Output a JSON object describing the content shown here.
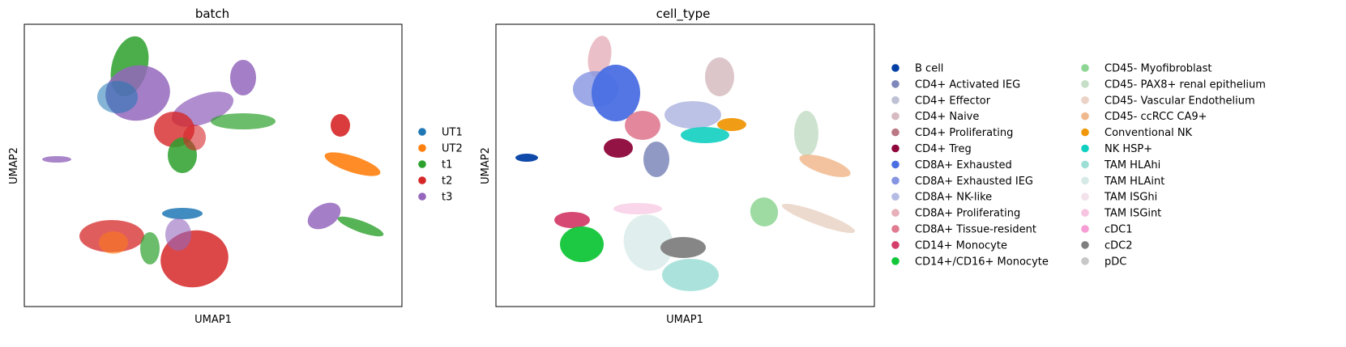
{
  "chart_data": [
    {
      "type": "scatter",
      "title": "batch",
      "xlabel": "UMAP1",
      "ylabel": "UMAP2",
      "grid": false,
      "ticks": false,
      "legend_placement": "right",
      "series": [
        {
          "name": "UT1",
          "color": "#1f77b4"
        },
        {
          "name": "UT2",
          "color": "#ff7f0e"
        },
        {
          "name": "t1",
          "color": "#2ca02c"
        },
        {
          "name": "t2",
          "color": "#d62728"
        },
        {
          "name": "t3",
          "color": "#9467bd"
        }
      ]
    },
    {
      "type": "scatter",
      "title": "cell_type",
      "xlabel": "UMAP1",
      "ylabel": "UMAP2",
      "grid": false,
      "ticks": false,
      "legend_placement": "right",
      "series": [
        {
          "name": "B cell",
          "color": "#023fa5"
        },
        {
          "name": "CD4+ Activated IEG",
          "color": "#7d87b9"
        },
        {
          "name": "CD4+ Effector",
          "color": "#bec1d4"
        },
        {
          "name": "CD4+ Naive",
          "color": "#d6bcc0"
        },
        {
          "name": "CD4+ Proliferating",
          "color": "#bb7784"
        },
        {
          "name": "CD4+ Treg",
          "color": "#8e063b"
        },
        {
          "name": "CD8A+ Exhausted",
          "color": "#4a6fe3"
        },
        {
          "name": "CD8A+ Exhausted IEG",
          "color": "#8595e1"
        },
        {
          "name": "CD8A+ NK-like",
          "color": "#b5bbe3"
        },
        {
          "name": "CD8A+ Proliferating",
          "color": "#e6afb9"
        },
        {
          "name": "CD8A+ Tissue-resident",
          "color": "#e07b91"
        },
        {
          "name": "CD14+ Monocyte",
          "color": "#d33f6a"
        },
        {
          "name": "CD14+/CD16+ Monocyte",
          "color": "#11c638"
        },
        {
          "name": "CD45- Myofibroblast",
          "color": "#8dd593"
        },
        {
          "name": "CD45- PAX8+ renal epithelium",
          "color": "#c6dec7"
        },
        {
          "name": "CD45- Vascular Endothelium",
          "color": "#ead3c6"
        },
        {
          "name": "CD45- ccRCC CA9+",
          "color": "#f0b98d"
        },
        {
          "name": "Conventional NK",
          "color": "#ef9708"
        },
        {
          "name": "NK HSP+",
          "color": "#0fcfc0"
        },
        {
          "name": "TAM HLAhi",
          "color": "#9cded6"
        },
        {
          "name": "TAM HLAint",
          "color": "#d5eae7"
        },
        {
          "name": "TAM ISGhi",
          "color": "#f3e1eb"
        },
        {
          "name": "TAM ISGint",
          "color": "#f6c4e1"
        },
        {
          "name": "cDC1",
          "color": "#f79cd4"
        },
        {
          "name": "cDC2",
          "color": "#7f7f7f"
        },
        {
          "name": "pDC",
          "color": "#c7c7c7"
        }
      ]
    }
  ]
}
